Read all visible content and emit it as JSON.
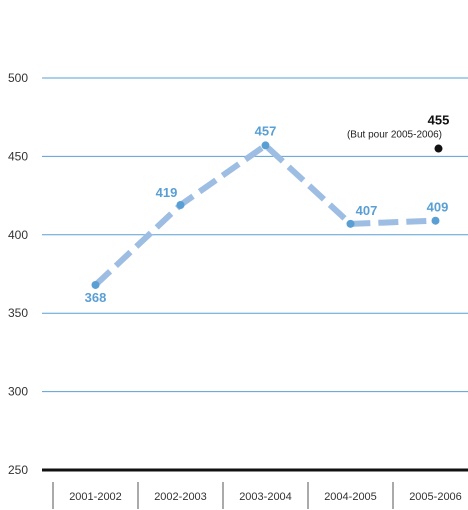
{
  "chart_data": {
    "type": "line",
    "categories": [
      "2001-2002",
      "2002-2003",
      "2003-2004",
      "2004-2005",
      "2005-2006"
    ],
    "series": [
      {
        "values": [
          368,
          419,
          457,
          407,
          409
        ],
        "color": "#5a9fd4",
        "line_color": "#9dbde3"
      }
    ],
    "data_labels": [
      "368",
      "419",
      "457",
      "407",
      "409"
    ],
    "goal": {
      "category": "2005-2006",
      "value": 455,
      "value_label": "455",
      "note": "(But pour 2005-2006)",
      "color": "#111111"
    },
    "ylim": [
      250,
      500
    ],
    "yticks": [
      250,
      300,
      350,
      400,
      450,
      500
    ],
    "ytick_labels": [
      "250",
      "300",
      "350",
      "400",
      "450",
      "500"
    ],
    "grid": true,
    "grid_color": "#5a9fd4",
    "title": "",
    "xlabel": "",
    "ylabel": ""
  }
}
